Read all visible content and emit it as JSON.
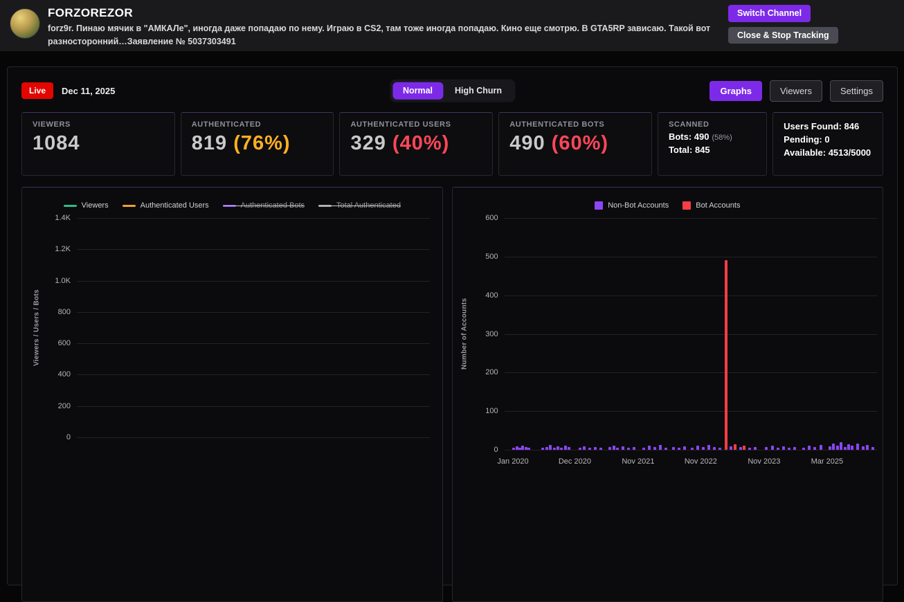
{
  "header": {
    "channel_name": "FORZOREZOR",
    "description": "forz9r. Пинаю мячик в \"АМКАЛе\", иногда даже попадаю по нему. Играю в CS2, там тоже иногда попадаю. Кино еще смотрю. В GTA5RP зависаю. Такой вот разносторонний…Заявление № 5037303491",
    "switch_channel": "Switch Channel",
    "close_stop": "Close & Stop Tracking"
  },
  "controls": {
    "live": "Live",
    "date": "Dec 11, 2025",
    "mode_normal": "Normal",
    "mode_high_churn": "High Churn",
    "graphs": "Graphs",
    "viewers": "Viewers",
    "settings": "Settings"
  },
  "stats": [
    {
      "label": "VIEWERS",
      "value": "1084",
      "pct": ""
    },
    {
      "label": "AUTHENTICATED",
      "value": "819",
      "pct": "(76%)"
    },
    {
      "label": "AUTHENTICATED USERS",
      "value": "329",
      "pct": "(40%)"
    },
    {
      "label": "AUTHENTICATED BOTS",
      "value": "490",
      "pct": "(60%)"
    }
  ],
  "scanned": {
    "label": "SCANNED",
    "bots_line": "Bots: 490",
    "bots_pct": "(58%)",
    "total_line": "Total: 845"
  },
  "summary": {
    "users_found": "Users Found: 846",
    "pending": "Pending: 0",
    "available": "Available: 4513/5000"
  },
  "colors": {
    "accent": "#7d2ae8",
    "live": "#e10600",
    "orange": "#ffb021",
    "red": "#ff4757",
    "nonbot": "#8d45f5",
    "bot": "#fb3d44"
  },
  "chart_data": [
    {
      "type": "line",
      "title": "",
      "ylabel": "Viewers / Users / Bots",
      "ylim": [
        0,
        1400
      ],
      "yticks": [
        "1.4K",
        "1.2K",
        "1.0K",
        "800",
        "600",
        "400",
        "200",
        "0"
      ],
      "grid": true,
      "legend_position": "top",
      "legend": [
        {
          "label": "Viewers",
          "color": "#2ebd85",
          "active": true
        },
        {
          "label": "Authenticated Users",
          "color": "#f0a030",
          "active": true
        },
        {
          "label": "Authenticated Bots",
          "color": "#8a46f0",
          "active": false
        },
        {
          "label": "Total Authenticated",
          "color": "#9e9ea4",
          "active": false
        }
      ],
      "x": [],
      "series": [
        {
          "name": "Viewers",
          "values": []
        },
        {
          "name": "Authenticated Users",
          "values": []
        },
        {
          "name": "Authenticated Bots",
          "values": []
        },
        {
          "name": "Total Authenticated",
          "values": []
        }
      ]
    },
    {
      "type": "bar",
      "title": "",
      "ylabel": "Number of Accounts",
      "ylim": [
        0,
        600
      ],
      "yticks": [
        "600",
        "500",
        "400",
        "300",
        "200",
        "100",
        "0"
      ],
      "grid": true,
      "legend_position": "top",
      "legend": [
        {
          "label": "Non-Bot Accounts",
          "color": "#8d45f5"
        },
        {
          "label": "Bot Accounts",
          "color": "#fb3d44"
        }
      ],
      "xticks": [
        "Jan 2020",
        "Dec 2020",
        "Nov 2021",
        "Nov 2022",
        "Nov 2023",
        "Mar 2025"
      ],
      "xtick_pos": [
        0.023,
        0.189,
        0.359,
        0.527,
        0.697,
        0.866
      ],
      "bars": [
        [
          0.022,
          6,
          "n"
        ],
        [
          0.03,
          9,
          "n"
        ],
        [
          0.038,
          5,
          "n"
        ],
        [
          0.046,
          11,
          "n"
        ],
        [
          0.054,
          7,
          "n"
        ],
        [
          0.062,
          4,
          "n"
        ],
        [
          0.1,
          5,
          "n"
        ],
        [
          0.11,
          8,
          "n"
        ],
        [
          0.12,
          12,
          "n"
        ],
        [
          0.13,
          6,
          "n"
        ],
        [
          0.14,
          9,
          "n"
        ],
        [
          0.15,
          5,
          "n"
        ],
        [
          0.16,
          10,
          "n"
        ],
        [
          0.17,
          7,
          "n"
        ],
        [
          0.2,
          6,
          "n"
        ],
        [
          0.21,
          9,
          "n"
        ],
        [
          0.225,
          5,
          "n"
        ],
        [
          0.24,
          8,
          "n"
        ],
        [
          0.255,
          6,
          "n"
        ],
        [
          0.28,
          7,
          "n"
        ],
        [
          0.29,
          11,
          "n"
        ],
        [
          0.3,
          6,
          "n"
        ],
        [
          0.315,
          9,
          "n"
        ],
        [
          0.33,
          5,
          "n"
        ],
        [
          0.345,
          8,
          "n"
        ],
        [
          0.37,
          6,
          "n"
        ],
        [
          0.385,
          10,
          "n"
        ],
        [
          0.4,
          7,
          "n"
        ],
        [
          0.415,
          12,
          "n"
        ],
        [
          0.43,
          6,
          "n"
        ],
        [
          0.45,
          8,
          "n"
        ],
        [
          0.465,
          5,
          "n"
        ],
        [
          0.48,
          9,
          "n"
        ],
        [
          0.5,
          6,
          "n"
        ],
        [
          0.515,
          10,
          "n"
        ],
        [
          0.53,
          7,
          "n"
        ],
        [
          0.545,
          12,
          "n"
        ],
        [
          0.56,
          8,
          "n"
        ],
        [
          0.575,
          6,
          "n"
        ],
        [
          0.591,
          490,
          "b"
        ],
        [
          0.605,
          9,
          "n"
        ],
        [
          0.615,
          14,
          "b"
        ],
        [
          0.63,
          7,
          "n"
        ],
        [
          0.64,
          10,
          "b"
        ],
        [
          0.655,
          6,
          "n"
        ],
        [
          0.67,
          8,
          "n"
        ],
        [
          0.7,
          7,
          "n"
        ],
        [
          0.715,
          11,
          "n"
        ],
        [
          0.73,
          6,
          "n"
        ],
        [
          0.745,
          9,
          "n"
        ],
        [
          0.76,
          5,
          "n"
        ],
        [
          0.775,
          8,
          "n"
        ],
        [
          0.8,
          6,
          "n"
        ],
        [
          0.815,
          10,
          "n"
        ],
        [
          0.83,
          7,
          "n"
        ],
        [
          0.845,
          12,
          "n"
        ],
        [
          0.87,
          9,
          "n"
        ],
        [
          0.88,
          16,
          "n"
        ],
        [
          0.89,
          11,
          "n"
        ],
        [
          0.9,
          19,
          "n"
        ],
        [
          0.91,
          8,
          "n"
        ],
        [
          0.92,
          14,
          "n"
        ],
        [
          0.93,
          10,
          "n"
        ],
        [
          0.945,
          17,
          "n"
        ],
        [
          0.96,
          9,
          "n"
        ],
        [
          0.97,
          13,
          "n"
        ],
        [
          0.985,
          7,
          "n"
        ]
      ]
    }
  ]
}
